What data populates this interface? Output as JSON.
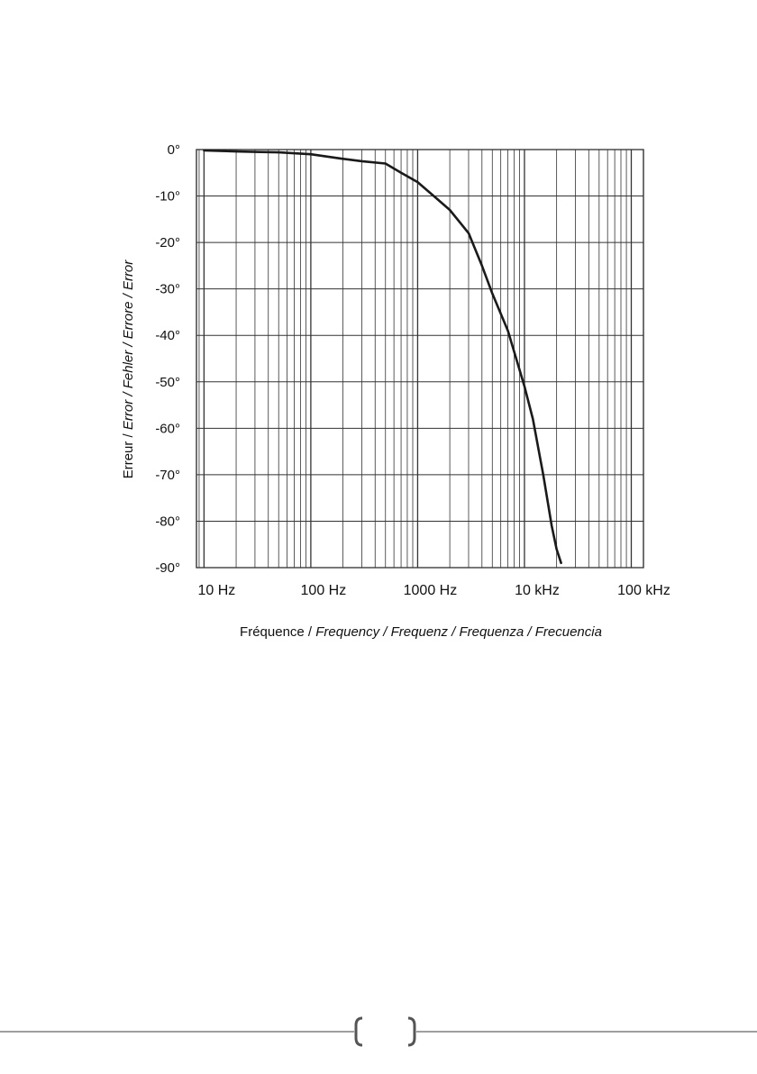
{
  "chart_data": {
    "type": "line",
    "x_scale": "log",
    "xlim": [
      8.5,
      130000
    ],
    "ylim": [
      -90,
      0
    ],
    "grid": true,
    "x_ticks": [
      {
        "value": 10,
        "label": "10 Hz"
      },
      {
        "value": 100,
        "label": "100 Hz"
      },
      {
        "value": 1000,
        "label": "1000 Hz"
      },
      {
        "value": 10000,
        "label": "10 kHz"
      },
      {
        "value": 100000,
        "label": "100 kHz"
      }
    ],
    "y_ticks": [
      {
        "value": 0,
        "label": "0°"
      },
      {
        "value": -10,
        "label": "-10°"
      },
      {
        "value": -20,
        "label": "-20°"
      },
      {
        "value": -30,
        "label": "-30°"
      },
      {
        "value": -40,
        "label": "-40°"
      },
      {
        "value": -50,
        "label": "-50°"
      },
      {
        "value": -60,
        "label": "-60°"
      },
      {
        "value": -70,
        "label": "-70°"
      },
      {
        "value": -80,
        "label": "-80°"
      },
      {
        "value": -90,
        "label": "-90°"
      }
    ],
    "xlabel_parts": [
      {
        "text": "Fréquence / ",
        "italic": false
      },
      {
        "text": "Frequency / Frequenz / Frequenza / Frecuencia",
        "italic": true
      }
    ],
    "ylabel_parts": [
      {
        "text": "Erreur / ",
        "italic": false
      },
      {
        "text": "Error / Fehler / Errore / Error",
        "italic": true
      }
    ],
    "series": [
      {
        "x": [
          10,
          20,
          30,
          50,
          100,
          200,
          300,
          500,
          700,
          1000,
          1500,
          2000,
          3000,
          4000,
          5000,
          7000,
          10000,
          12000,
          15000,
          18000,
          20000,
          22000
        ],
        "y": [
          -0.2,
          -0.4,
          -0.5,
          -0.6,
          -1,
          -2,
          -2.5,
          -3,
          -5,
          -7,
          -10.5,
          -13,
          -18,
          -25,
          -31,
          -39,
          -51,
          -58,
          -70,
          -81,
          -86,
          -89
        ]
      }
    ]
  }
}
